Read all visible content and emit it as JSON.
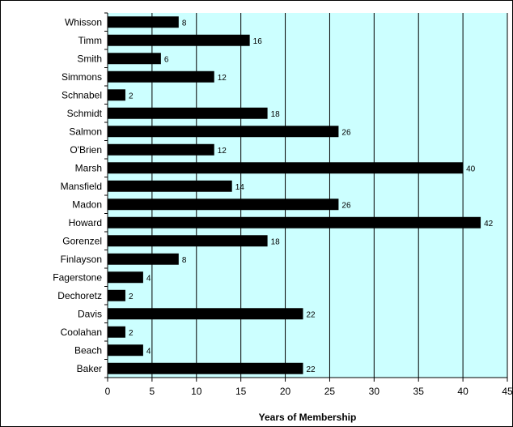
{
  "chart_data": {
    "type": "bar",
    "orientation": "horizontal",
    "title": "",
    "xlabel": "Years of Membership",
    "ylabel": "",
    "categories": [
      "Whisson",
      "Timm",
      "Smith",
      "Simmons",
      "Schnabel",
      "Schmidt",
      "Salmon",
      "O'Brien",
      "Marsh",
      "Mansfield",
      "Madon",
      "Howard",
      "Gorenzel",
      "Finlayson",
      "Fagerstone",
      "Dechoretz",
      "Davis",
      "Coolahan",
      "Beach",
      "Baker"
    ],
    "values": [
      8,
      16,
      6,
      12,
      2,
      18,
      26,
      12,
      40,
      14,
      26,
      42,
      18,
      8,
      4,
      2,
      22,
      2,
      4,
      22
    ],
    "xlim": [
      0,
      45
    ],
    "xticks": [
      0,
      5,
      10,
      15,
      20,
      25,
      30,
      35,
      40,
      45
    ],
    "grid": "vertical",
    "legend": "none",
    "colors": {
      "plot_background": "#ccffff",
      "bar_fill": "#000000",
      "gridline": "#000000"
    }
  }
}
